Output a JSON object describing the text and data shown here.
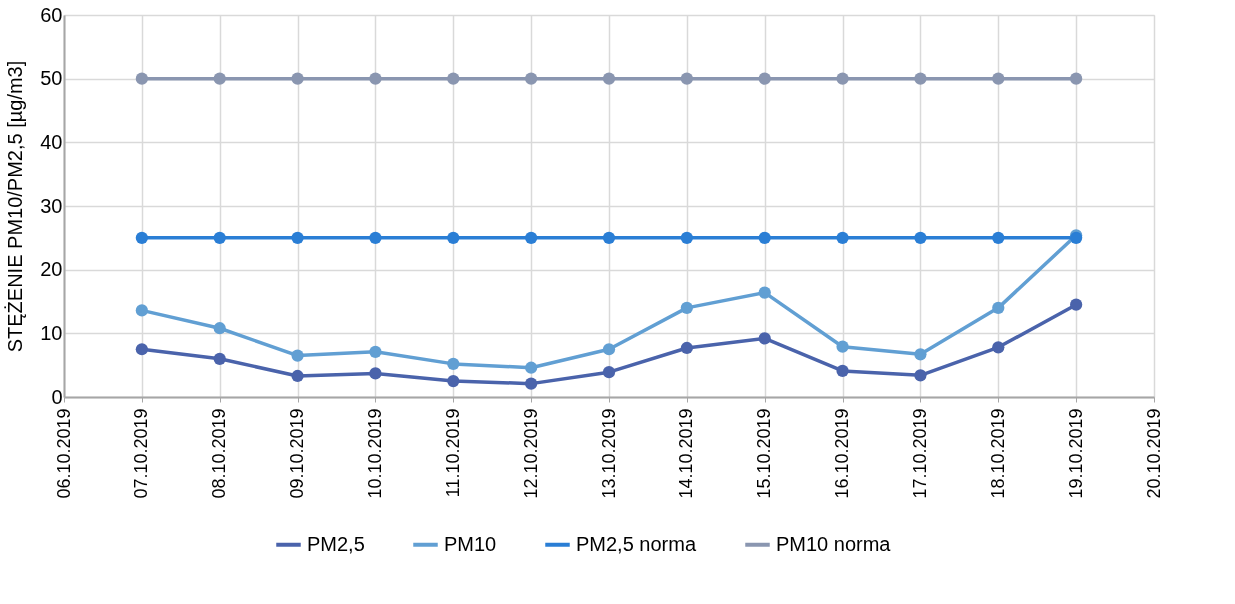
{
  "chart_data": {
    "type": "line",
    "ylabel": "STĘŻENIE PM10/PM2,5 [µg/m3]",
    "x": [
      "2019-10-07",
      "2019-10-08",
      "2019-10-09",
      "2019-10-10",
      "2019-10-11",
      "2019-10-12",
      "2019-10-13",
      "2019-10-14",
      "2019-10-15",
      "2019-10-16",
      "2019-10-17",
      "2019-10-18",
      "2019-10-19"
    ],
    "series": [
      {
        "name": "PM2,5",
        "color": "#4a63ab",
        "values": [
          7.5,
          6.0,
          3.3,
          3.7,
          2.5,
          2.1,
          3.9,
          7.7,
          9.2,
          4.1,
          3.4,
          7.8,
          14.5
        ]
      },
      {
        "name": "PM10",
        "color": "#619fd3",
        "values": [
          13.6,
          10.8,
          6.5,
          7.1,
          5.2,
          4.6,
          7.5,
          14.0,
          16.4,
          7.9,
          6.7,
          14.0,
          25.4
        ]
      },
      {
        "name": "PM2,5 norma",
        "color": "#2a7ed5",
        "values": [
          25,
          25,
          25,
          25,
          25,
          25,
          25,
          25,
          25,
          25,
          25,
          25,
          25
        ]
      },
      {
        "name": "PM10 norma",
        "color": "#8a96b0",
        "values": [
          50,
          50,
          50,
          50,
          50,
          50,
          50,
          50,
          50,
          50,
          50,
          50,
          50
        ]
      }
    ],
    "xlim": [
      "2019-10-06",
      "2019-10-20"
    ],
    "xticks": [
      {
        "value": "2019-10-06",
        "label": "06.10.2019"
      },
      {
        "value": "2019-10-07",
        "label": "07.10.2019"
      },
      {
        "value": "2019-10-08",
        "label": "08.10.2019"
      },
      {
        "value": "2019-10-09",
        "label": "09.10.2019"
      },
      {
        "value": "2019-10-10",
        "label": "10.10.2019"
      },
      {
        "value": "2019-10-11",
        "label": "11.10.2019"
      },
      {
        "value": "2019-10-12",
        "label": "12.10.2019"
      },
      {
        "value": "2019-10-13",
        "label": "13.10.2019"
      },
      {
        "value": "2019-10-14",
        "label": "14.10.2019"
      },
      {
        "value": "2019-10-15",
        "label": "15.10.2019"
      },
      {
        "value": "2019-10-16",
        "label": "16.10.2019"
      },
      {
        "value": "2019-10-17",
        "label": "17.10.2019"
      },
      {
        "value": "2019-10-18",
        "label": "18.10.2019"
      },
      {
        "value": "2019-10-19",
        "label": "19.10.2019"
      },
      {
        "value": "2019-10-20",
        "label": "20.10.2019"
      }
    ],
    "ylim": [
      0,
      60
    ],
    "yticks": [
      0,
      10,
      20,
      30,
      40,
      50,
      60
    ],
    "grid": true,
    "legend": "bottom",
    "marker": "circle",
    "line_style": "solid"
  }
}
